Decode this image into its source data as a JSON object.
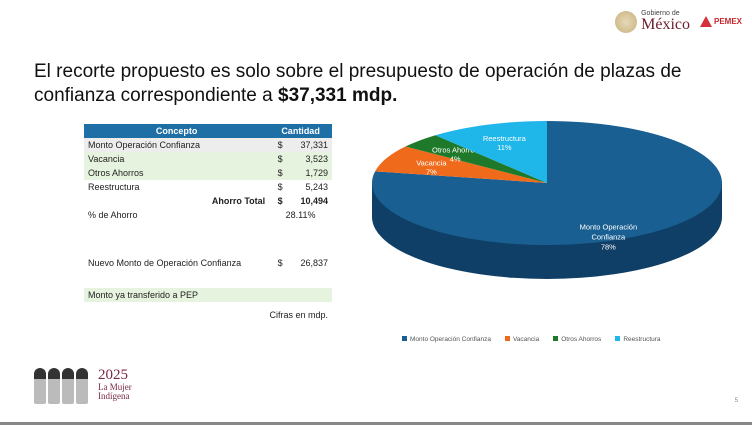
{
  "header": {
    "gob_small": "Gobierno de",
    "gob_big": "México",
    "pemex": "PEMEX"
  },
  "title": {
    "text": "El recorte propuesto es solo sobre el presupuesto de operación de plazas de confianza correspondiente a ",
    "bold": "$37,331 mdp."
  },
  "table": {
    "headers": [
      "Concepto",
      "Cantidad"
    ],
    "rows": [
      {
        "label": "Monto Operación Confianza",
        "cur": "$",
        "value": "37,331"
      },
      {
        "label": "Vacancia",
        "cur": "$",
        "value": "3,523"
      },
      {
        "label": "Otros Ahorros",
        "cur": "$",
        "value": "1,729"
      },
      {
        "label": "Reestructura",
        "cur": "$",
        "value": "5,243"
      }
    ],
    "total": {
      "label": "Ahorro Total",
      "cur": "$",
      "value": "10,494"
    },
    "pct": {
      "label": "% de Ahorro",
      "value": "28.11%"
    },
    "nuevo": {
      "label": "Nuevo Monto de Operación Confianza",
      "cur": "$",
      "value": "26,837"
    },
    "transferido": "Monto ya transferido a PEP",
    "note": "Cifras en mdp."
  },
  "chart_data": {
    "type": "pie",
    "categories": [
      "Monto Operación Confianza",
      "Vacancia",
      "Otros Ahorros",
      "Reestructura"
    ],
    "values": [
      78,
      7,
      4,
      11
    ],
    "labels": [
      "78%",
      "7%",
      "4%",
      "11%"
    ],
    "colors": [
      "#1a5f91",
      "#f06a1c",
      "#1e7a2a",
      "#1fb6ea"
    ],
    "legend_position": "bottom"
  },
  "footer": {
    "year": "2025",
    "line1": "La Mujer",
    "line2": "Indígena",
    "page": "5"
  }
}
